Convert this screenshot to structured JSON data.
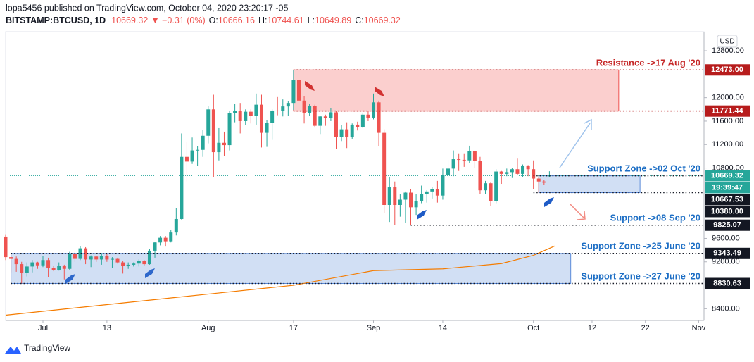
{
  "header": {
    "author_line": "lopa5456 published on TradingView.com, October 04, 2020 23:20:17 -05",
    "symbol": "BITSTAMP:BTCUSD, 1D",
    "change": "▼ −0.31 (0%)",
    "ohlc_labels": [
      "O:",
      "H:",
      "L:",
      "C:"
    ]
  },
  "footer": {
    "brand": "TradingView"
  },
  "chart_data": {
    "type": "candlestick",
    "currency": "USD",
    "up_color": "#26a69a",
    "down_color": "#ef5350",
    "x": [
      "Jun 24",
      "Jun 25",
      "Jun 26",
      "Jun 27",
      "Jun 28",
      "Jun 29",
      "Jun 30",
      "Jul 1",
      "Jul 2",
      "Jul 3",
      "Jul 4",
      "Jul 5",
      "Jul 6",
      "Jul 7",
      "Jul 8",
      "Jul 9",
      "Jul 10",
      "Jul 11",
      "Jul 12",
      "Jul 13",
      "Jul 14",
      "Jul 15",
      "Jul 16",
      "Jul 17",
      "Jul 18",
      "Jul 19",
      "Jul 20",
      "Jul 21",
      "Jul 22",
      "Jul 23",
      "Jul 24",
      "Jul 25",
      "Jul 26",
      "Jul 27",
      "Jul 28",
      "Jul 29",
      "Jul 30",
      "Jul 31",
      "Aug 1",
      "Aug 2",
      "Aug 3",
      "Aug 4",
      "Aug 5",
      "Aug 6",
      "Aug 7",
      "Aug 8",
      "Aug 9",
      "Aug 10",
      "Aug 11",
      "Aug 12",
      "Aug 13",
      "Aug 14",
      "Aug 15",
      "Aug 16",
      "Aug 17",
      "Aug 18",
      "Aug 19",
      "Aug 20",
      "Aug 21",
      "Aug 22",
      "Aug 23",
      "Aug 24",
      "Aug 25",
      "Aug 26",
      "Aug 27",
      "Aug 28",
      "Aug 29",
      "Aug 30",
      "Aug 31",
      "Sep 1",
      "Sep 2",
      "Sep 3",
      "Sep 4",
      "Sep 5",
      "Sep 6",
      "Sep 7",
      "Sep 8",
      "Sep 9",
      "Sep 10",
      "Sep 11",
      "Sep 12",
      "Sep 13",
      "Sep 14",
      "Sep 15",
      "Sep 16",
      "Sep 17",
      "Sep 18",
      "Sep 19",
      "Sep 20",
      "Sep 21",
      "Sep 22",
      "Sep 23",
      "Sep 24",
      "Sep 25",
      "Sep 26",
      "Sep 27",
      "Sep 28",
      "Sep 29",
      "Sep 30",
      "Oct 1",
      "Oct 2",
      "Oct 3",
      "Oct 4"
    ],
    "open": [
      9630,
      9280,
      9250,
      9160,
      9010,
      9120,
      9190,
      9140,
      9230,
      9090,
      9060,
      9130,
      9080,
      9340,
      9250,
      9430,
      9240,
      9290,
      9240,
      9300,
      9240,
      9250,
      9190,
      9130,
      9150,
      9170,
      9210,
      9160,
      9390,
      9530,
      9610,
      9550,
      9700,
      9930,
      10990,
      10910,
      11100,
      11110,
      11350,
      11800,
      11070,
      11230,
      11190,
      11740,
      11770,
      11600,
      11760,
      11690,
      11880,
      11400,
      11570,
      11780,
      11770,
      11850,
      11910,
      12300,
      11950,
      11740,
      11860,
      11520,
      11680,
      11650,
      11750,
      11330,
      11460,
      11330,
      11540,
      11500,
      11710,
      11660,
      11920,
      11400,
      10170,
      10470,
      10170,
      10260,
      10380,
      10130,
      10240,
      10360,
      10400,
      10440,
      10330,
      10680,
      10790,
      10950,
      10940,
      10930,
      11090,
      10920,
      10420,
      10540,
      10240,
      10740,
      10700,
      10730,
      10780,
      10700,
      10840,
      10780,
      10620,
      10570,
      10666.16
    ],
    "high": [
      9670,
      9340,
      9290,
      9200,
      9190,
      9230,
      9200,
      9300,
      9270,
      9130,
      9190,
      9150,
      9370,
      9370,
      9470,
      9450,
      9310,
      9300,
      9350,
      9340,
      9280,
      9270,
      9210,
      9190,
      9190,
      9240,
      9230,
      9420,
      9540,
      9640,
      9640,
      9740,
      10110,
      11390,
      11240,
      11320,
      11170,
      11450,
      11860,
      12050,
      11480,
      11420,
      11780,
      11900,
      11910,
      11800,
      11800,
      12070,
      12050,
      11620,
      11800,
      12010,
      11970,
      11940,
      12470,
      12400,
      12030,
      11900,
      11880,
      11690,
      11710,
      11820,
      11770,
      11530,
      11580,
      11560,
      11590,
      11730,
      11780,
      12070,
      11950,
      11460,
      10640,
      10570,
      10360,
      10400,
      10440,
      10350,
      10500,
      10420,
      10480,
      10580,
      10790,
      10940,
      11100,
      11050,
      11050,
      11180,
      11090,
      10990,
      10580,
      10560,
      10780,
      10750,
      10790,
      10800,
      10960,
      10860,
      10850,
      10930,
      10670,
      10600,
      10744.61
    ],
    "low": [
      9230,
      9020,
      9030,
      8830,
      8950,
      9020,
      9080,
      9110,
      8940,
      9040,
      9050,
      8900,
      9060,
      9200,
      9230,
      9160,
      9110,
      9200,
      9150,
      9200,
      9100,
      9170,
      9000,
      9080,
      9120,
      9120,
      9140,
      9150,
      9270,
      9480,
      9460,
      9530,
      9650,
      9920,
      10570,
      10870,
      10840,
      10990,
      11220,
      10650,
      10930,
      11010,
      11100,
      11580,
      11390,
      11530,
      11560,
      11540,
      11150,
      11160,
      11280,
      11700,
      11680,
      11690,
      11790,
      11860,
      11560,
      11690,
      11490,
      11380,
      11520,
      11600,
      11120,
      11260,
      11140,
      11300,
      11440,
      11480,
      11600,
      11630,
      11170,
      10030,
      9880,
      9830,
      9970,
      9870,
      9830,
      10000,
      10200,
      10210,
      10280,
      10210,
      10260,
      10620,
      10660,
      10750,
      10820,
      10890,
      10800,
      10360,
      10360,
      10150,
      10200,
      10530,
      10660,
      10630,
      10680,
      10640,
      10660,
      10440,
      10380,
      10510,
      10649.89
    ],
    "close": [
      9280,
      9250,
      9160,
      9010,
      9120,
      9190,
      9140,
      9230,
      9090,
      9060,
      9130,
      9080,
      9340,
      9250,
      9430,
      9240,
      9290,
      9240,
      9300,
      9240,
      9250,
      9190,
      9130,
      9150,
      9170,
      9210,
      9160,
      9390,
      9530,
      9610,
      9550,
      9700,
      9930,
      10990,
      10910,
      11100,
      11110,
      11350,
      11800,
      11070,
      11230,
      11190,
      11740,
      11770,
      11600,
      11760,
      11690,
      11880,
      11400,
      11570,
      11780,
      11770,
      11850,
      11910,
      12300,
      11950,
      11740,
      11860,
      11520,
      11680,
      11650,
      11750,
      11330,
      11460,
      11330,
      11540,
      11500,
      11710,
      11660,
      11920,
      11400,
      10170,
      10470,
      10170,
      10260,
      10380,
      10130,
      10240,
      10360,
      10400,
      10440,
      10330,
      10680,
      10790,
      10950,
      10940,
      10930,
      11090,
      10920,
      10420,
      10540,
      10240,
      10740,
      10700,
      10730,
      10780,
      10700,
      10840,
      10780,
      10620,
      10570,
      10550,
      10669.32
    ],
    "countdown": "19:39:47",
    "ma": {
      "color": "#f57c00",
      "x": [
        "Jun 24",
        "Jul 13",
        "Aug 1",
        "Aug 17",
        "Sep 1",
        "Sep 14",
        "Sep 25",
        "Oct 1",
        "Oct 5"
      ],
      "values": [
        8290,
        8470,
        8650,
        8800,
        9050,
        9080,
        9170,
        9310,
        9470
      ]
    },
    "xlim": [
      "Jun 24",
      "Nov 2"
    ],
    "xticks": [
      {
        "value": "Jul 1",
        "label": "Jul"
      },
      {
        "value": "Jul 13",
        "label": "13"
      },
      {
        "value": "Aug 1",
        "label": "Aug"
      },
      {
        "value": "Aug 17",
        "label": "17"
      },
      {
        "value": "Sep 1",
        "label": "Sep"
      },
      {
        "value": "Sep 14",
        "label": "14"
      },
      {
        "value": "Oct 1",
        "label": "Oct"
      },
      {
        "value": "Oct 12",
        "label": "12"
      },
      {
        "value": "Oct 22",
        "label": "22"
      },
      {
        "value": "Nov 1",
        "label": "Nov"
      }
    ],
    "ylim": [
      8200,
      13125
    ],
    "yticks": [
      {
        "value": 8400,
        "label": "8400.00"
      },
      {
        "value": 9200,
        "label": "9200.00"
      },
      {
        "value": 9600,
        "label": "9600.00"
      },
      {
        "value": 10800,
        "label": "10800.00"
      },
      {
        "value": 11200,
        "label": "11200.00"
      },
      {
        "value": 11600,
        "label": "11600.00"
      },
      {
        "value": 12000,
        "label": "12000.00"
      },
      {
        "value": 12800,
        "label": "12800.00"
      }
    ],
    "grid": false,
    "zones": [
      {
        "from": "Aug 17",
        "to": "Oct 17",
        "top": 12473,
        "bottom": 11771.44,
        "fill": "rgba(239,83,80,0.28)",
        "stroke": "#ef5350"
      },
      {
        "from": "Oct 2",
        "to": "Oct 21",
        "top": 10667.53,
        "bottom": 10380,
        "fill": "rgba(91,139,217,0.28)",
        "stroke": "#5b8bd9"
      },
      {
        "from": "Jun 25",
        "to": "Oct 8",
        "top": 9343.49,
        "bottom": 8830.63,
        "fill": "rgba(91,139,217,0.28)",
        "stroke": "#5b8bd9"
      }
    ],
    "levels": [
      {
        "value": 12473,
        "label": "12473.00",
        "from": "Aug 17",
        "color": "#b71c1c"
      },
      {
        "value": 11771.44,
        "from": "Aug 17",
        "color": "#b71c1c"
      },
      {
        "value": 10667.53,
        "from": "Oct 1",
        "color": "#131722"
      },
      {
        "value": 10380,
        "label": "10380.00",
        "from": "Oct 1",
        "color": "#131722"
      },
      {
        "value": 9825.07,
        "from": "Sep 8",
        "color": "#131722"
      },
      {
        "value": 9343.49,
        "from": "Jun 25",
        "color": "#131722"
      },
      {
        "value": 8830.63,
        "from": "Jun 25",
        "color": "#131722"
      }
    ],
    "annotations": [
      {
        "text": "Resistance ->17 Aug '20",
        "color": "#c62828"
      },
      {
        "text": "Support Zone ->02 Oct '20",
        "color": "#1e6fc5"
      },
      {
        "text": "Support ->08 Sep '20",
        "color": "#1e6fc5"
      },
      {
        "text": "Support Zone ->25 June '20",
        "color": "#1e6fc5"
      },
      {
        "text": "Support Zone ->27 June '20",
        "color": "#1e6fc5"
      }
    ]
  }
}
